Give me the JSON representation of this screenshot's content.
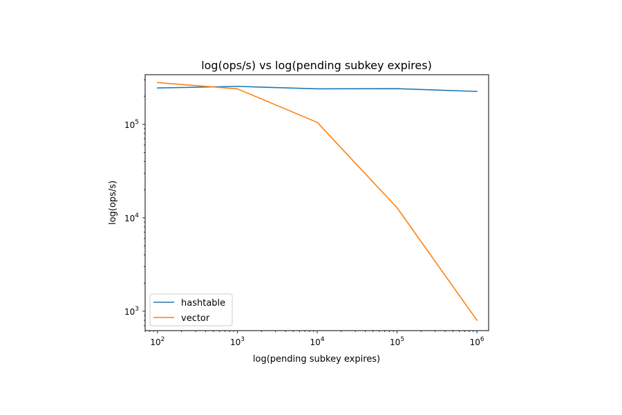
{
  "chart_data": {
    "type": "line",
    "title": "log(ops/s) vs log(pending subkey expires)",
    "xlabel": "log(pending subkey expires)",
    "ylabel": "log(ops/s)",
    "xscale": "log",
    "yscale": "log",
    "xlim": [
      70,
      1400000
    ],
    "ylim": [
      620,
      340000
    ],
    "x_ticks": [
      {
        "value": 100,
        "base": "10",
        "exp": "2"
      },
      {
        "value": 1000,
        "base": "10",
        "exp": "3"
      },
      {
        "value": 10000,
        "base": "10",
        "exp": "4"
      },
      {
        "value": 100000,
        "base": "10",
        "exp": "5"
      },
      {
        "value": 1000000,
        "base": "10",
        "exp": "6"
      }
    ],
    "y_ticks": [
      {
        "value": 1000,
        "base": "10",
        "exp": "3"
      },
      {
        "value": 10000,
        "base": "10",
        "exp": "4"
      },
      {
        "value": 100000,
        "base": "10",
        "exp": "5"
      }
    ],
    "grid": false,
    "legend_position": "lower-left",
    "x": [
      100,
      1000,
      10000,
      100000,
      1000000
    ],
    "series": [
      {
        "name": "hashtable",
        "color": "#1f77b4",
        "values": [
          245000,
          255000,
          240000,
          241000,
          225000
        ]
      },
      {
        "name": "vector",
        "color": "#ff7f0e",
        "values": [
          280000,
          240000,
          105000,
          12800,
          800
        ]
      }
    ]
  }
}
